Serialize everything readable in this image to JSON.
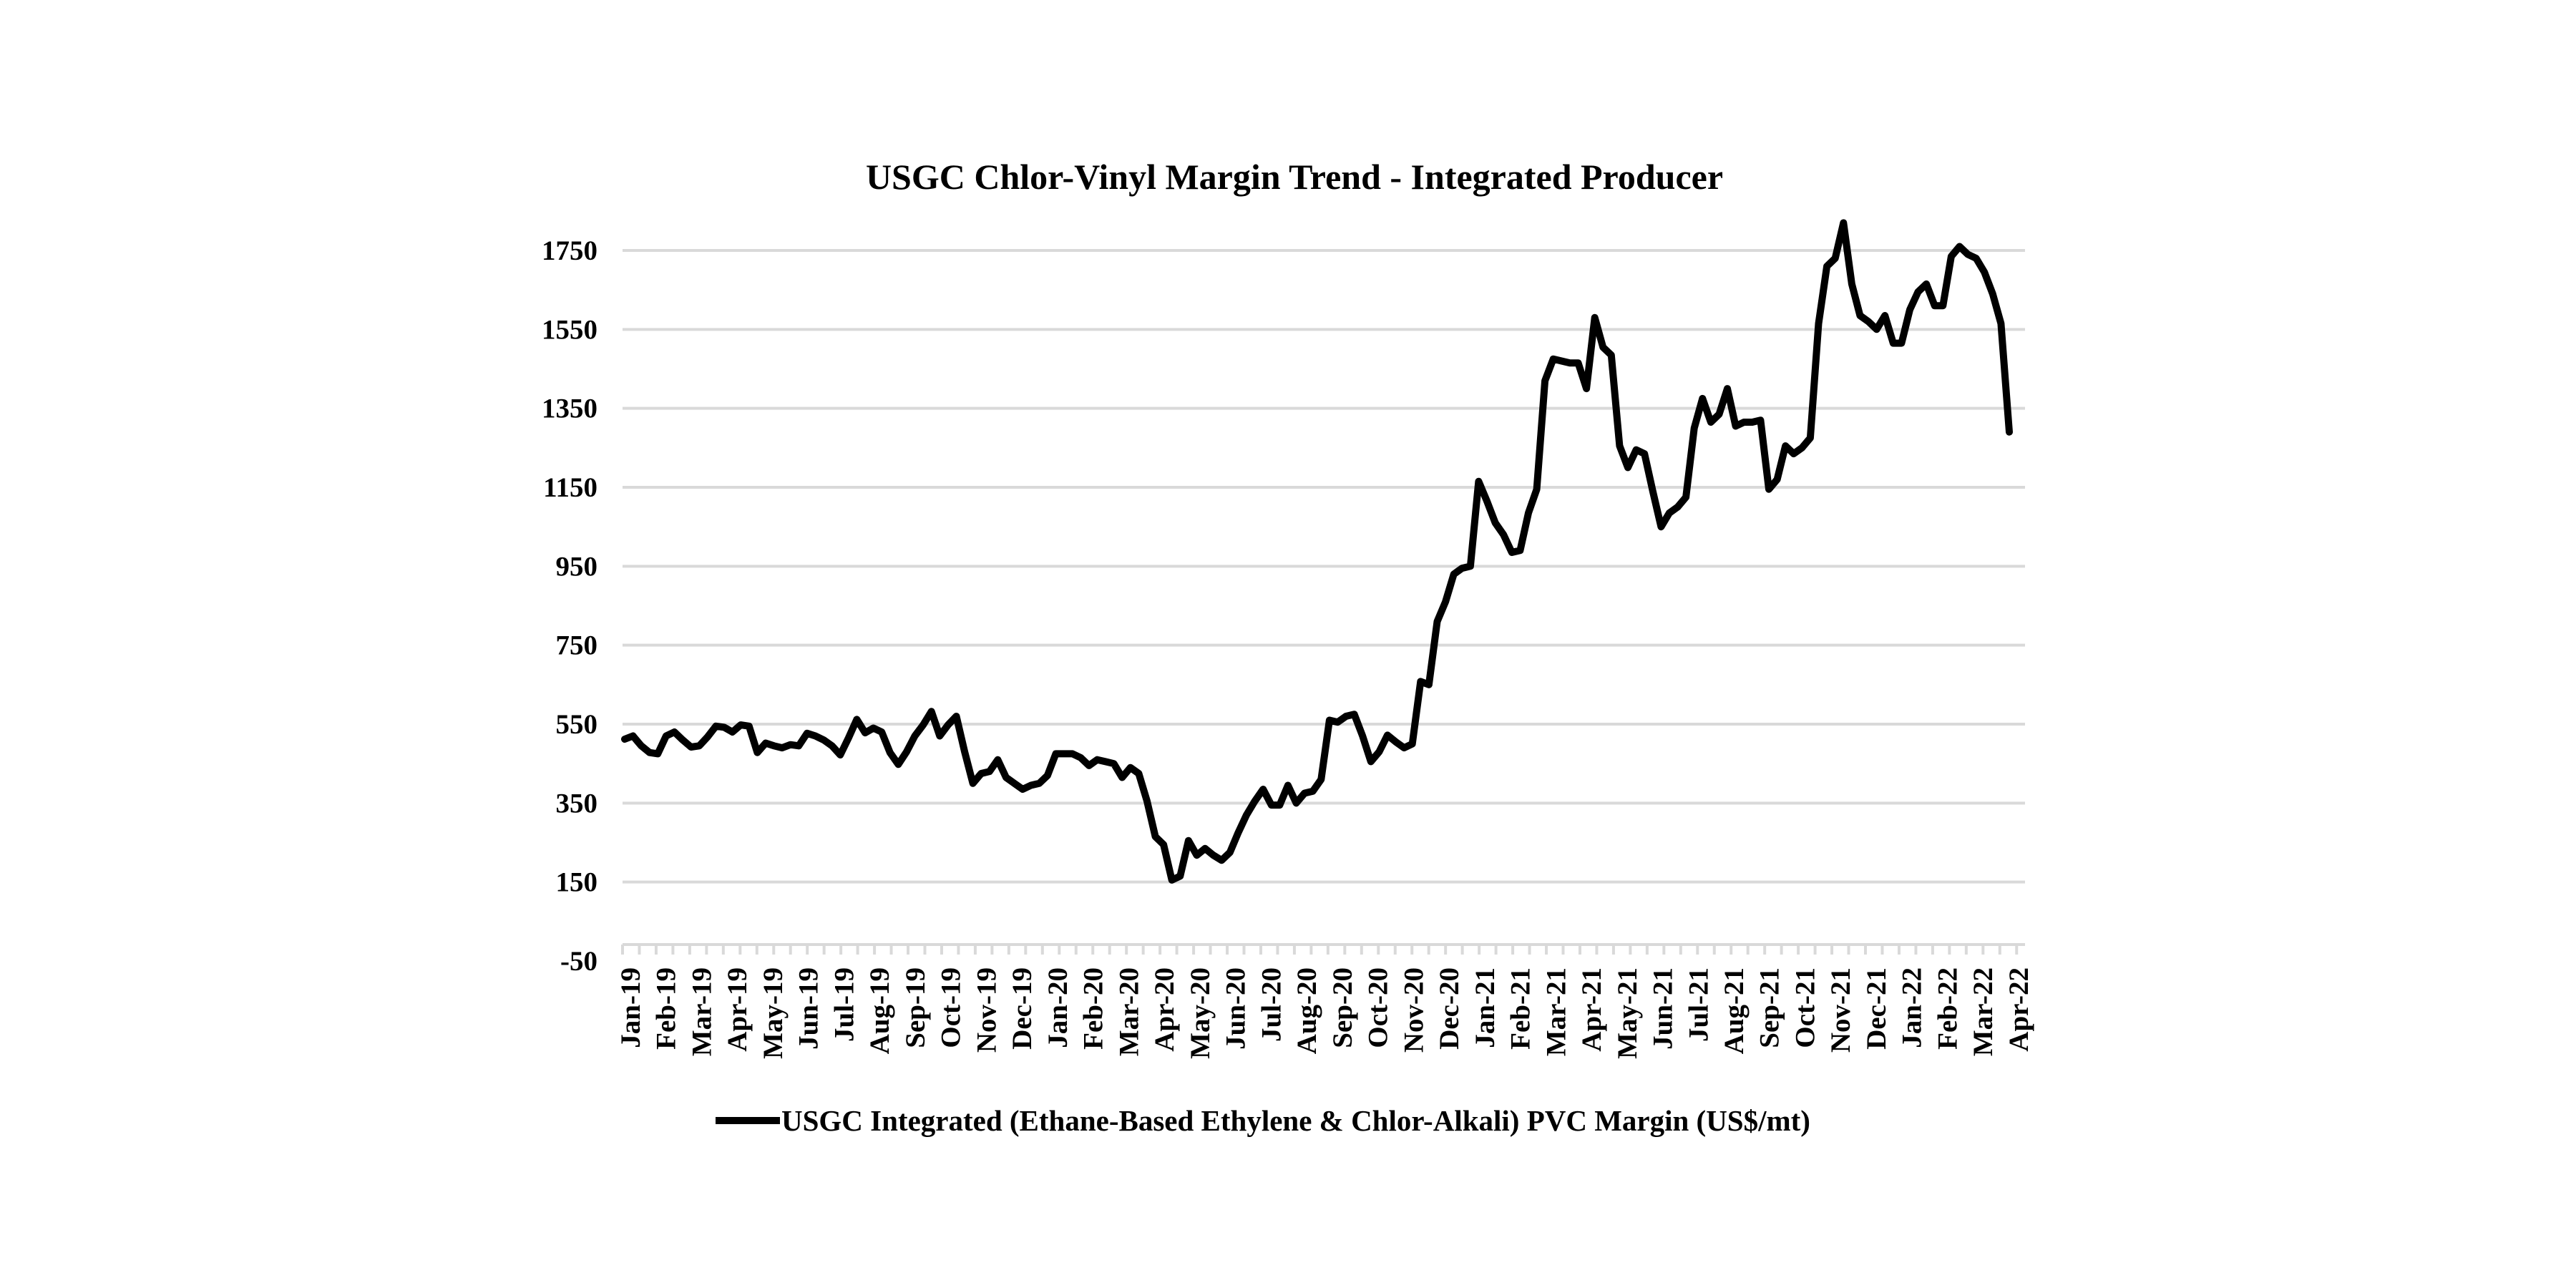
{
  "chart_data": {
    "type": "line",
    "title": "USGC Chlor-Vinyl Margin Trend - Integrated Producer",
    "xlabel": "",
    "ylabel": "",
    "ylim": [
      -50,
      1750
    ],
    "y_ticks": [
      -50,
      150,
      350,
      550,
      750,
      950,
      1150,
      1350,
      1550,
      1750
    ],
    "x_tick_labels": [
      "Jan-19",
      "Feb-19",
      "Mar-19",
      "Apr-19",
      "May-19",
      "Jun-19",
      "Jul-19",
      "Aug-19",
      "Sep-19",
      "Oct-19",
      "Nov-19",
      "Dec-19",
      "Jan-20",
      "Feb-20",
      "Mar-20",
      "Apr-20",
      "May-20",
      "Jun-20",
      "Jul-20",
      "Aug-20",
      "Sep-20",
      "Oct-20",
      "Nov-20",
      "Dec-20",
      "Jan-21",
      "Feb-21",
      "Mar-21",
      "Apr-21",
      "May-21",
      "Jun-21",
      "Jul-21",
      "Aug-21",
      "Sep-21",
      "Oct-21",
      "Nov-21",
      "Dec-21",
      "Jan-22",
      "Feb-22",
      "Mar-22",
      "Apr-22"
    ],
    "grid": "horizontal",
    "legend_position": "bottom",
    "series": [
      {
        "name": "USGC Integrated (Ethane-Based Ethylene & Chlor-Alkali) PVC Margin (US$/mt)",
        "color": "#000000",
        "values": [
          512,
          520,
          495,
          478,
          475,
          520,
          530,
          510,
          492,
          495,
          518,
          545,
          542,
          530,
          548,
          545,
          478,
          502,
          495,
          490,
          498,
          495,
          527,
          520,
          510,
          495,
          472,
          515,
          562,
          528,
          540,
          530,
          478,
          448,
          480,
          520,
          548,
          582,
          520,
          548,
          570,
          480,
          400,
          425,
          430,
          460,
          415,
          400,
          385,
          395,
          400,
          420,
          475,
          475,
          475,
          465,
          445,
          460,
          455,
          450,
          415,
          440,
          425,
          355,
          265,
          245,
          155,
          165,
          255,
          218,
          235,
          218,
          205,
          225,
          275,
          320,
          355,
          385,
          345,
          345,
          395,
          350,
          375,
          380,
          410,
          560,
          555,
          570,
          575,
          520,
          455,
          480,
          522,
          505,
          490,
          500,
          658,
          650,
          810,
          860,
          930,
          945,
          950,
          1165,
          1115,
          1060,
          1030,
          985,
          990,
          1085,
          1145,
          1420,
          1475,
          1470,
          1465,
          1465,
          1400,
          1580,
          1505,
          1485,
          1255,
          1200,
          1245,
          1235,
          1140,
          1050,
          1085,
          1100,
          1125,
          1300,
          1375,
          1315,
          1335,
          1400,
          1305,
          1315,
          1315,
          1320,
          1145,
          1170,
          1255,
          1235,
          1250,
          1275,
          1565,
          1710,
          1730,
          1820,
          1665,
          1585,
          1570,
          1550,
          1585,
          1515,
          1515,
          1600,
          1645,
          1665,
          1610,
          1610,
          1735,
          1760,
          1740,
          1730,
          1695,
          1640,
          1565,
          1290
        ]
      }
    ]
  }
}
